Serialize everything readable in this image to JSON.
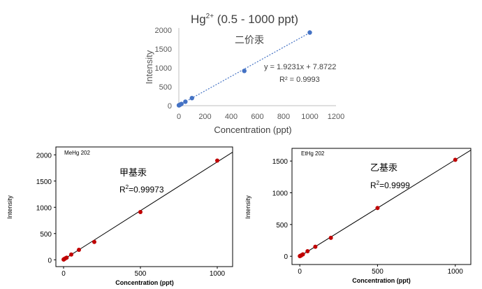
{
  "chart_data": [
    {
      "type": "scatter",
      "title_base": "Hg",
      "title_sup": "2+",
      "title_rest": " (0.5 - 1000 ppt)",
      "label": "二价汞",
      "xlabel": "Concentration (ppt)",
      "ylabel": "Intensity",
      "xlim": [
        0,
        1200
      ],
      "ylim": [
        0,
        2000
      ],
      "xticks": [
        "0",
        "200",
        "400",
        "600",
        "800",
        "1000",
        "1200"
      ],
      "yticks": [
        "0",
        "500",
        "1000",
        "1500",
        "2000"
      ],
      "equation": "y = 1.9231x + 7.8722",
      "r2": "R² = 0.9993",
      "fit": {
        "slope": 1.9231,
        "intercept": 7.8722
      },
      "points": [
        {
          "x": 0.5,
          "y": 9
        },
        {
          "x": 1,
          "y": 10
        },
        {
          "x": 5,
          "y": 17
        },
        {
          "x": 10,
          "y": 27
        },
        {
          "x": 20,
          "y": 46
        },
        {
          "x": 50,
          "y": 104
        },
        {
          "x": 100,
          "y": 200
        },
        {
          "x": 500,
          "y": 920
        },
        {
          "x": 1000,
          "y": 1935
        }
      ],
      "point_color": "#4472c4",
      "line_color": "#4472c4"
    },
    {
      "type": "scatter",
      "label": "甲基汞",
      "corner_label": "MeHg 202",
      "r2_base": "R",
      "r2_sup": "2",
      "r2_value": "=0.99973",
      "xlabel": "Concentration (ppt)",
      "ylabel": "Intensity",
      "xlim": [
        -50,
        1100
      ],
      "ylim": [
        -130,
        2150
      ],
      "xticks": [
        {
          "v": 0,
          "t": "0"
        },
        {
          "v": 500,
          "t": "500"
        },
        {
          "v": 1000,
          "t": "1000"
        }
      ],
      "yticks": [
        {
          "v": 0,
          "t": "0"
        },
        {
          "v": 500,
          "t": "500"
        },
        {
          "v": 1000,
          "t": "1000"
        },
        {
          "v": 1500,
          "t": "1500"
        },
        {
          "v": 2000,
          "t": "2000"
        }
      ],
      "fit": {
        "slope": 1.86,
        "intercept": 5
      },
      "points": [
        {
          "x": 0.5,
          "y": 5
        },
        {
          "x": 1,
          "y": 7
        },
        {
          "x": 5,
          "y": 15
        },
        {
          "x": 10,
          "y": 25
        },
        {
          "x": 20,
          "y": 40
        },
        {
          "x": 50,
          "y": 100
        },
        {
          "x": 100,
          "y": 190
        },
        {
          "x": 200,
          "y": 340
        },
        {
          "x": 500,
          "y": 910
        },
        {
          "x": 1000,
          "y": 1890
        }
      ],
      "point_color": "#c00000",
      "line_color": "#000000"
    },
    {
      "type": "scatter",
      "label": "乙基汞",
      "corner_label": "EtHg 202",
      "r2_base": "R",
      "r2_sup": "2",
      "r2_value": "=0.9999",
      "xlabel": "Concentration (ppt)",
      "ylabel": "Intensity",
      "xlim": [
        -50,
        1100
      ],
      "ylim": [
        -130,
        1700
      ],
      "xticks": [
        {
          "v": 0,
          "t": "0"
        },
        {
          "v": 500,
          "t": "500"
        },
        {
          "v": 1000,
          "t": "1000"
        }
      ],
      "yticks": [
        {
          "v": 0,
          "t": "0"
        },
        {
          "v": 500,
          "t": "500"
        },
        {
          "v": 1000,
          "t": "1000"
        },
        {
          "v": 1500,
          "t": "1500"
        }
      ],
      "fit": {
        "slope": 1.52,
        "intercept": 0
      },
      "points": [
        {
          "x": 0.5,
          "y": 2
        },
        {
          "x": 1,
          "y": 3
        },
        {
          "x": 5,
          "y": 8
        },
        {
          "x": 10,
          "y": 15
        },
        {
          "x": 20,
          "y": 30
        },
        {
          "x": 50,
          "y": 80
        },
        {
          "x": 100,
          "y": 150
        },
        {
          "x": 200,
          "y": 290
        },
        {
          "x": 500,
          "y": 760
        },
        {
          "x": 1000,
          "y": 1520
        }
      ],
      "point_color": "#c00000",
      "line_color": "#000000"
    }
  ]
}
